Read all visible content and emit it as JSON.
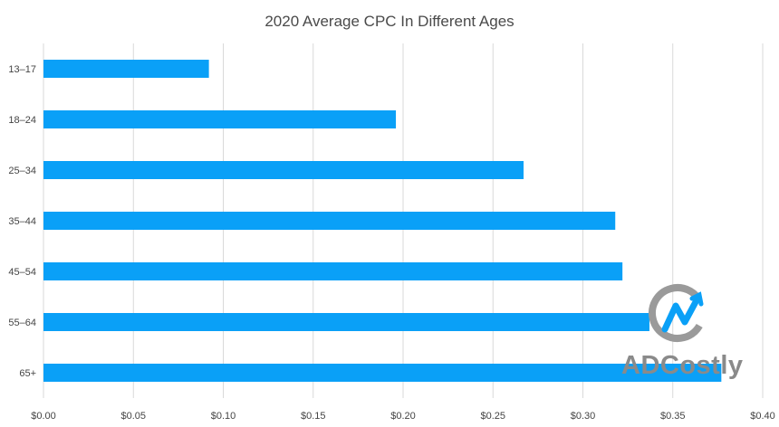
{
  "chart_data": {
    "type": "bar",
    "orientation": "horizontal",
    "title": "2020 Average CPC In Different Ages",
    "categories": [
      "13–17",
      "18–24",
      "25–34",
      "35–44",
      "45–54",
      "55–64",
      "65+"
    ],
    "values": [
      0.092,
      0.196,
      0.267,
      0.318,
      0.322,
      0.337,
      0.377
    ],
    "xlim": [
      0,
      0.4
    ],
    "xticks": [
      "$0.00",
      "$0.05",
      "$0.10",
      "$0.15",
      "$0.20",
      "$0.25",
      "$0.30",
      "$0.35",
      "$0.40"
    ],
    "xtick_values": [
      0,
      0.05,
      0.1,
      0.15,
      0.2,
      0.25,
      0.3,
      0.35,
      0.4
    ],
    "grid": "vertical",
    "bar_color": "#0aa0f7",
    "grid_color": "#d9d9d9",
    "label_color": "#444444"
  },
  "watermark": {
    "text": "ADCostly",
    "color": "#8a8a8a",
    "accent": "#0aa0f7"
  }
}
